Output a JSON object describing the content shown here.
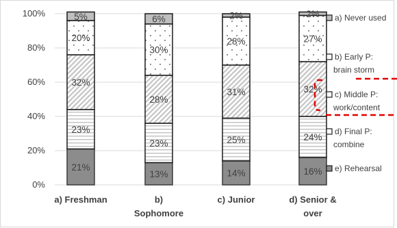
{
  "chart_data": {
    "type": "bar",
    "stacked": true,
    "percent_stacked": true,
    "categories": [
      [
        "a) Freshman"
      ],
      [
        "b)",
        "Sophomore"
      ],
      [
        "c) Junior"
      ],
      [
        "d) Senior &",
        "over"
      ]
    ],
    "series": [
      {
        "name": [
          "e) Rehearsal"
        ],
        "fill": "solid-gray",
        "color": "#8c8c8c",
        "values": [
          21,
          13,
          14,
          16
        ],
        "labels": [
          "21%",
          "13%",
          "14%",
          "16%"
        ]
      },
      {
        "name": [
          "d) Final P:",
          "combine"
        ],
        "fill": "horizontal-lines",
        "color": "#c8c8c8",
        "values": [
          23,
          23,
          25,
          24
        ],
        "labels": [
          "23%",
          "23%",
          "25%",
          "24%"
        ]
      },
      {
        "name": [
          "c) Middle P:",
          "work/content"
        ],
        "fill": "diagonal-hatch",
        "color": "#bdbdbd",
        "values": [
          32,
          28,
          31,
          32
        ],
        "labels": [
          "32%",
          "28%",
          "31%",
          "32%"
        ]
      },
      {
        "name": [
          "b) Early P:",
          "brain storm"
        ],
        "fill": "dots",
        "color": "#404040",
        "values": [
          20,
          30,
          28,
          27
        ],
        "labels": [
          "20%",
          "30%",
          "28%",
          "27%"
        ]
      },
      {
        "name": [
          "a) Never used"
        ],
        "fill": "light-gray",
        "color": "#bfbfbf",
        "values": [
          5,
          6,
          2,
          2
        ],
        "labels": [
          "5%",
          "6%",
          "2%",
          "2%"
        ]
      }
    ],
    "ylim": [
      0,
      100
    ],
    "yticks": [
      "0%",
      "20%",
      "40%",
      "60%",
      "80%",
      "100%"
    ],
    "grid": true,
    "legend_position": "right",
    "legend_order": [
      "a) Never used",
      "b) Early P: brain storm",
      "c) Middle P: work/content",
      "d) Final P: combine",
      "e) Rehearsal"
    ],
    "highlight": {
      "series": "c) Middle P: work/content",
      "style": "red-dashed-box",
      "color": "#e00000"
    }
  }
}
